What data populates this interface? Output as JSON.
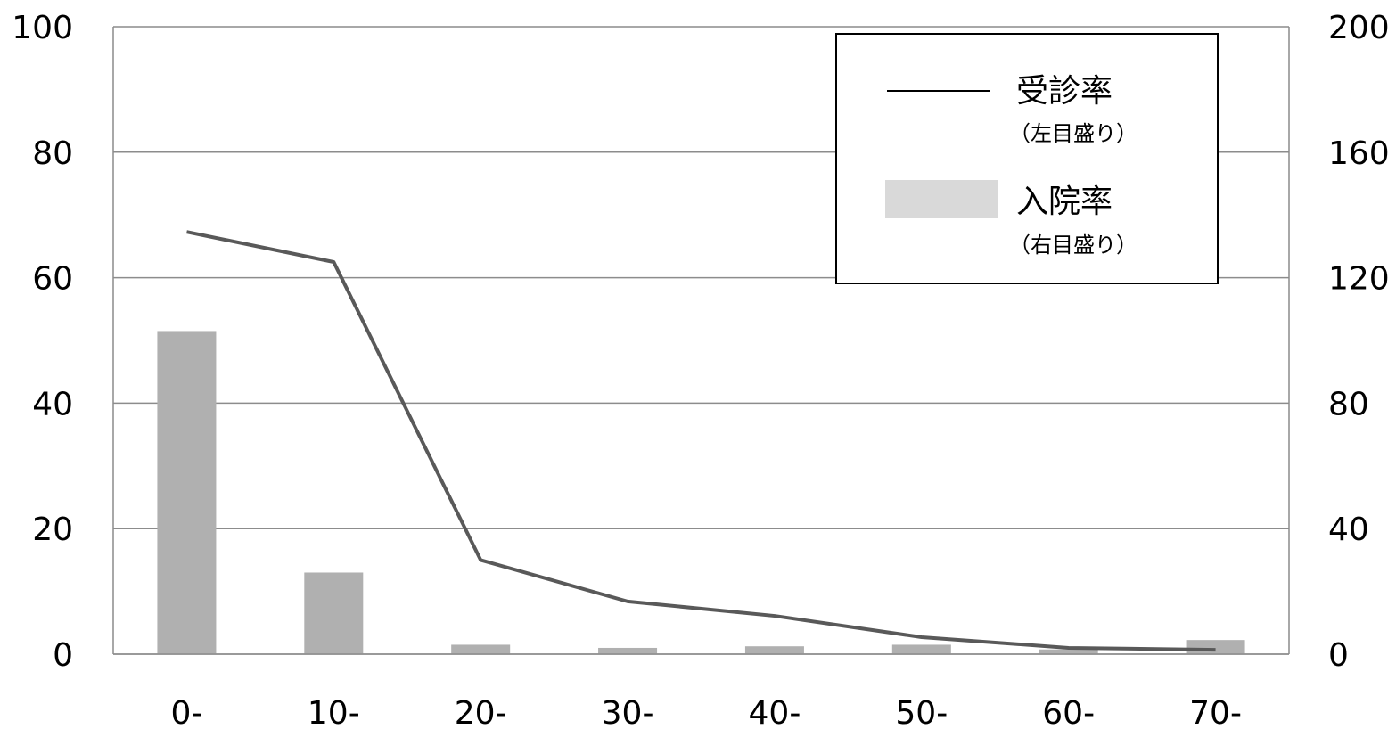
{
  "chart_data": {
    "type": "bar",
    "categories": [
      "0-",
      "10-",
      "20-",
      "30-",
      "40-",
      "50-",
      "60-",
      "70-"
    ],
    "series": [
      {
        "name": "入院率",
        "sub_label": "（右目盛り）",
        "type": "bar",
        "axis": "right",
        "color": "#b0b0b0",
        "values": [
          103,
          26,
          3,
          2,
          2.5,
          3,
          1.5,
          4.5
        ]
      },
      {
        "name": "受診率",
        "sub_label": "（左目盛り）",
        "type": "line",
        "axis": "left",
        "color": "#595959",
        "values": [
          67.3,
          62.5,
          15,
          8.4,
          6.1,
          2.7,
          1.0,
          0.7
        ]
      }
    ],
    "y_left": {
      "min": 0,
      "max": 100,
      "ticks": [
        0,
        20,
        40,
        60,
        80,
        100
      ]
    },
    "y_right": {
      "min": 0,
      "max": 200,
      "ticks": [
        0,
        40,
        80,
        120,
        160,
        200
      ]
    },
    "grid": true,
    "legend": "top-right",
    "legend_swatch_color": "#d9d9d9",
    "title": "",
    "xlabel": "",
    "ylabel": ""
  }
}
